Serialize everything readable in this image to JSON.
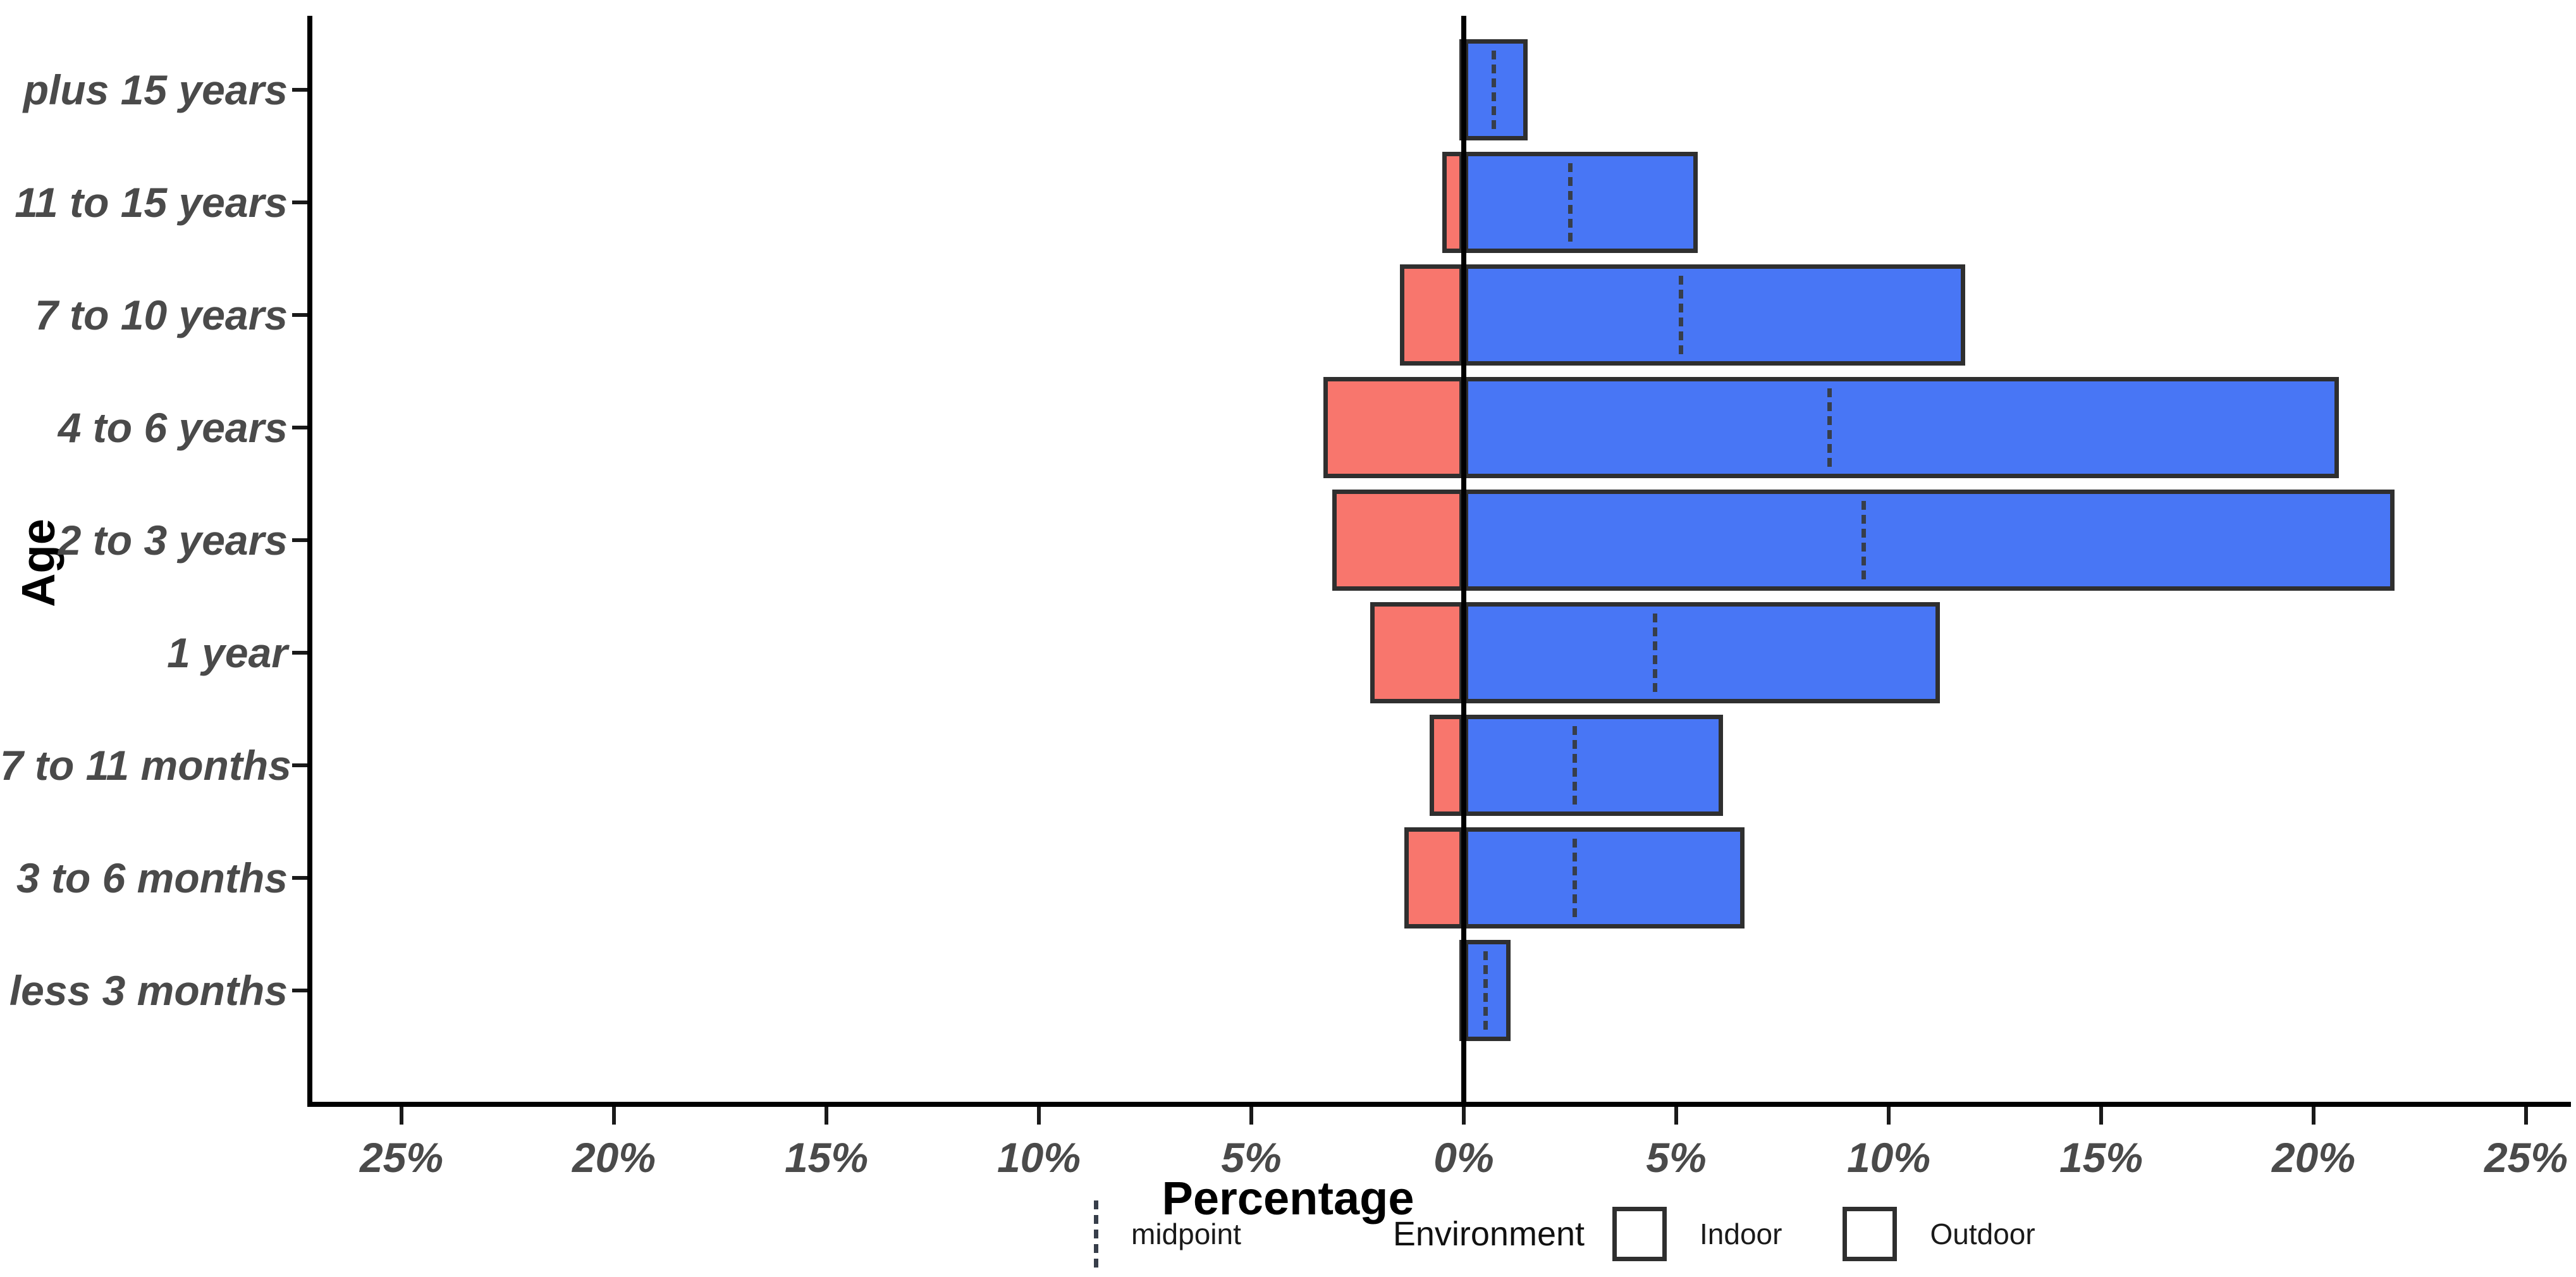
{
  "chart": {
    "y_axis_title": "Age",
    "x_axis_title": "Percentage"
  },
  "legend": {
    "midpoint_label": "midpoint",
    "environment_title": "Environment",
    "indoor_label": "Indoor",
    "outdoor_label": "Outdoor"
  },
  "colors": {
    "indoor": "#F8766D",
    "outdoor": "#4876F5",
    "bar_border": "#2F2F2F",
    "midpoint_dash": "#373E4A",
    "axis_text": "#4A4A4A",
    "axis_line": "#000000"
  },
  "chart_data": {
    "type": "bar",
    "orientation": "horizontal-diverging",
    "title": "",
    "xlabel": "Percentage",
    "ylabel": "Age",
    "categories": [
      "plus 15 years",
      "11 to 15 years",
      "7 to 10 years",
      "4 to 6 years",
      "2 to 3 years",
      "1 year",
      "7 to 11 months",
      "3 to 6 months",
      "less 3 months"
    ],
    "series": [
      {
        "name": "Indoor",
        "side": "left",
        "color": "#F8766D",
        "values": [
          0.1,
          0.5,
          1.5,
          3.3,
          3.1,
          2.2,
          0.8,
          1.4,
          0.1
        ]
      },
      {
        "name": "Outdoor",
        "side": "right",
        "color": "#4876F5",
        "values": [
          1.5,
          5.5,
          11.8,
          20.6,
          21.9,
          11.2,
          6.1,
          6.6,
          1.1
        ]
      }
    ],
    "midpoints": [
      0.7,
      2.5,
      5.1,
      8.6,
      9.4,
      4.5,
      2.6,
      2.6,
      0.5
    ],
    "x_ticks_percent": [
      -25,
      -20,
      -15,
      -10,
      -5,
      0,
      5,
      10,
      15,
      20,
      25
    ],
    "x_tick_labels": [
      "25%",
      "20%",
      "15%",
      "10%",
      "5%",
      "0%",
      "5%",
      "10%",
      "15%",
      "20%",
      "25%"
    ],
    "xlim": [
      -27,
      26
    ],
    "grid": false,
    "legend_position": "bottom"
  }
}
